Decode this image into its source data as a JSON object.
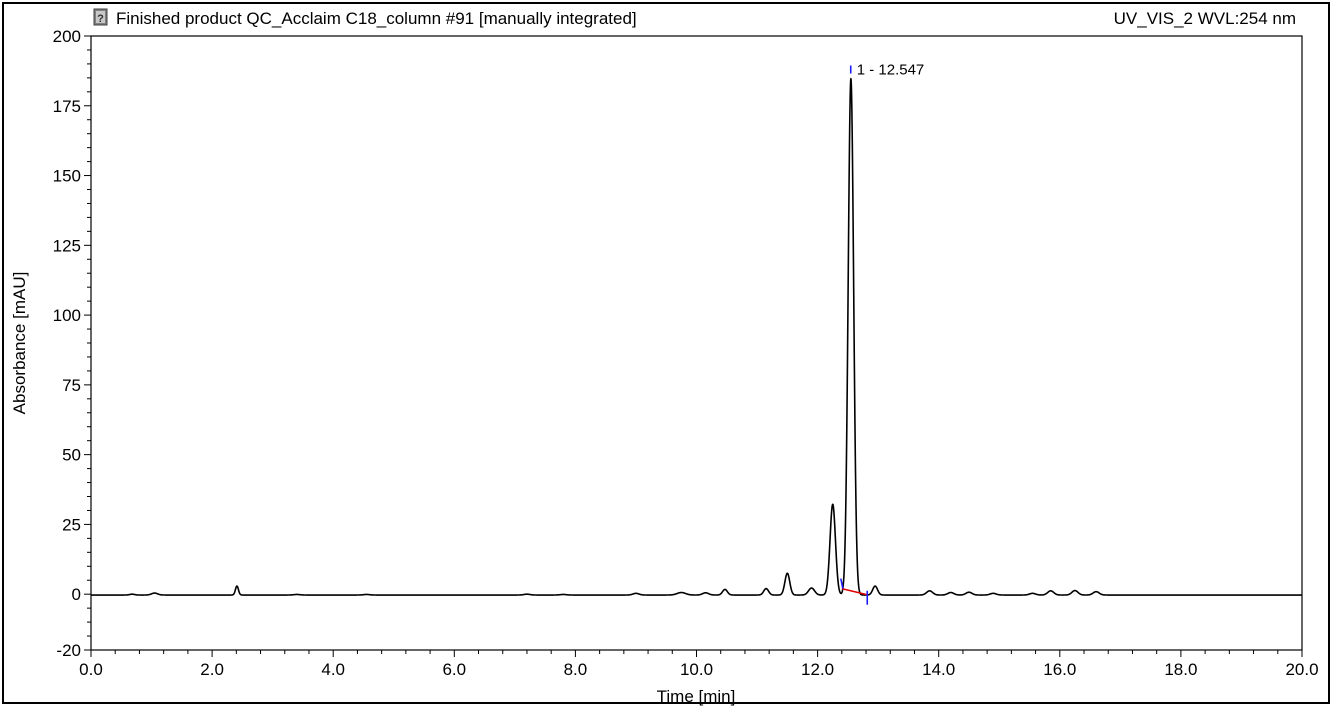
{
  "header": {
    "title": "Finished product QC_Acclaim C18_column #91 [manually integrated]",
    "channel": "UV_VIS_2 WVL:254 nm",
    "status_icon": "question-icon"
  },
  "colors": {
    "trace": "#000000",
    "baseline": "#e00000",
    "marker": "#1a1aff",
    "axis": "#000000"
  },
  "chart_data": {
    "type": "line",
    "title": "Finished product QC_Acclaim C18_column #91 [manually integrated]",
    "subtitle": "UV_VIS_2 WVL:254 nm",
    "xlabel": "Time [min]",
    "ylabel": "Absorbance [mAU]",
    "xlim": [
      0,
      20
    ],
    "ylim": [
      -20,
      200
    ],
    "xticks": [
      0,
      2,
      4,
      6,
      8,
      10,
      12,
      14,
      16,
      18,
      20
    ],
    "xtick_labels": [
      "0.0",
      "2.0",
      "4.0",
      "6.0",
      "8.0",
      "10.0",
      "12.0",
      "14.0",
      "16.0",
      "18.0",
      "20.0"
    ],
    "yticks": [
      -20,
      0,
      25,
      50,
      75,
      100,
      125,
      150,
      175,
      200
    ],
    "ytick_labels": [
      "-20",
      "0",
      "25",
      "50",
      "75",
      "100",
      "125",
      "150",
      "175",
      "200"
    ],
    "grid": false,
    "legend": "none",
    "baseline_offset": -0.3,
    "peaks": [
      {
        "t": 0.68,
        "h": 0.3,
        "w": 0.04
      },
      {
        "t": 1.05,
        "h": 0.7,
        "w": 0.05
      },
      {
        "t": 2.41,
        "h": 3.2,
        "w": 0.025
      },
      {
        "t": 3.4,
        "h": 0.2,
        "w": 0.05
      },
      {
        "t": 4.55,
        "h": 0.2,
        "w": 0.05
      },
      {
        "t": 7.2,
        "h": 0.3,
        "w": 0.05
      },
      {
        "t": 7.8,
        "h": 0.2,
        "w": 0.05
      },
      {
        "t": 9.0,
        "h": 0.6,
        "w": 0.05
      },
      {
        "t": 9.75,
        "h": 0.9,
        "w": 0.07
      },
      {
        "t": 10.15,
        "h": 0.8,
        "w": 0.05
      },
      {
        "t": 10.47,
        "h": 2.0,
        "w": 0.04
      },
      {
        "t": 11.15,
        "h": 2.3,
        "w": 0.04
      },
      {
        "t": 11.5,
        "h": 7.8,
        "w": 0.04
      },
      {
        "t": 11.9,
        "h": 2.5,
        "w": 0.05
      },
      {
        "t": 12.25,
        "h": 32.5,
        "w": 0.045
      },
      {
        "t": 12.55,
        "h": 185.0,
        "w": 0.045
      },
      {
        "t": 12.95,
        "h": 3.2,
        "w": 0.04
      },
      {
        "t": 13.85,
        "h": 1.5,
        "w": 0.05
      },
      {
        "t": 14.2,
        "h": 0.9,
        "w": 0.05
      },
      {
        "t": 14.5,
        "h": 1.0,
        "w": 0.05
      },
      {
        "t": 14.9,
        "h": 0.6,
        "w": 0.05
      },
      {
        "t": 15.55,
        "h": 0.6,
        "w": 0.05
      },
      {
        "t": 15.85,
        "h": 1.5,
        "w": 0.05
      },
      {
        "t": 16.25,
        "h": 1.6,
        "w": 0.05
      },
      {
        "t": 16.6,
        "h": 1.2,
        "w": 0.05
      }
    ],
    "integration": {
      "peak_label": "1 - 12.547",
      "retention_time": 12.547,
      "start": {
        "t": 12.4,
        "y": 2.0
      },
      "end": {
        "t": 12.82,
        "y": -0.2
      },
      "label_marker": {
        "t": 12.547,
        "y": 188
      }
    }
  }
}
